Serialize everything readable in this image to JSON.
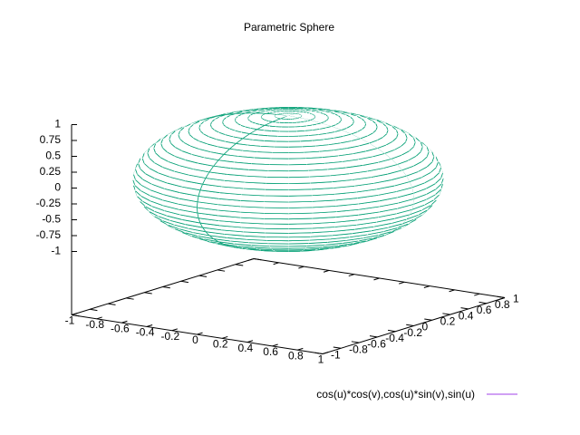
{
  "chart_data": {
    "type": "surface",
    "title": "Parametric Sphere",
    "series": [
      {
        "name": "cos(u)*cos(v),cos(u)*sin(v),sin(u)",
        "color": "#c080f0"
      }
    ],
    "surface_color": "#009e73",
    "xlim": [
      -1,
      1
    ],
    "ylim": [
      -1,
      1
    ],
    "zlim": [
      -1,
      1
    ],
    "xticks": [
      -1,
      -0.8,
      -0.6,
      -0.4,
      -0.2,
      0,
      0.2,
      0.4,
      0.6,
      0.8,
      1
    ],
    "yticks": [
      -1,
      -0.8,
      -0.6,
      -0.4,
      -0.2,
      0,
      0.2,
      0.4,
      0.6,
      0.8,
      1
    ],
    "zticks": [
      -1,
      -0.75,
      -0.5,
      -0.25,
      0,
      0.25,
      0.5,
      0.75,
      1
    ]
  }
}
